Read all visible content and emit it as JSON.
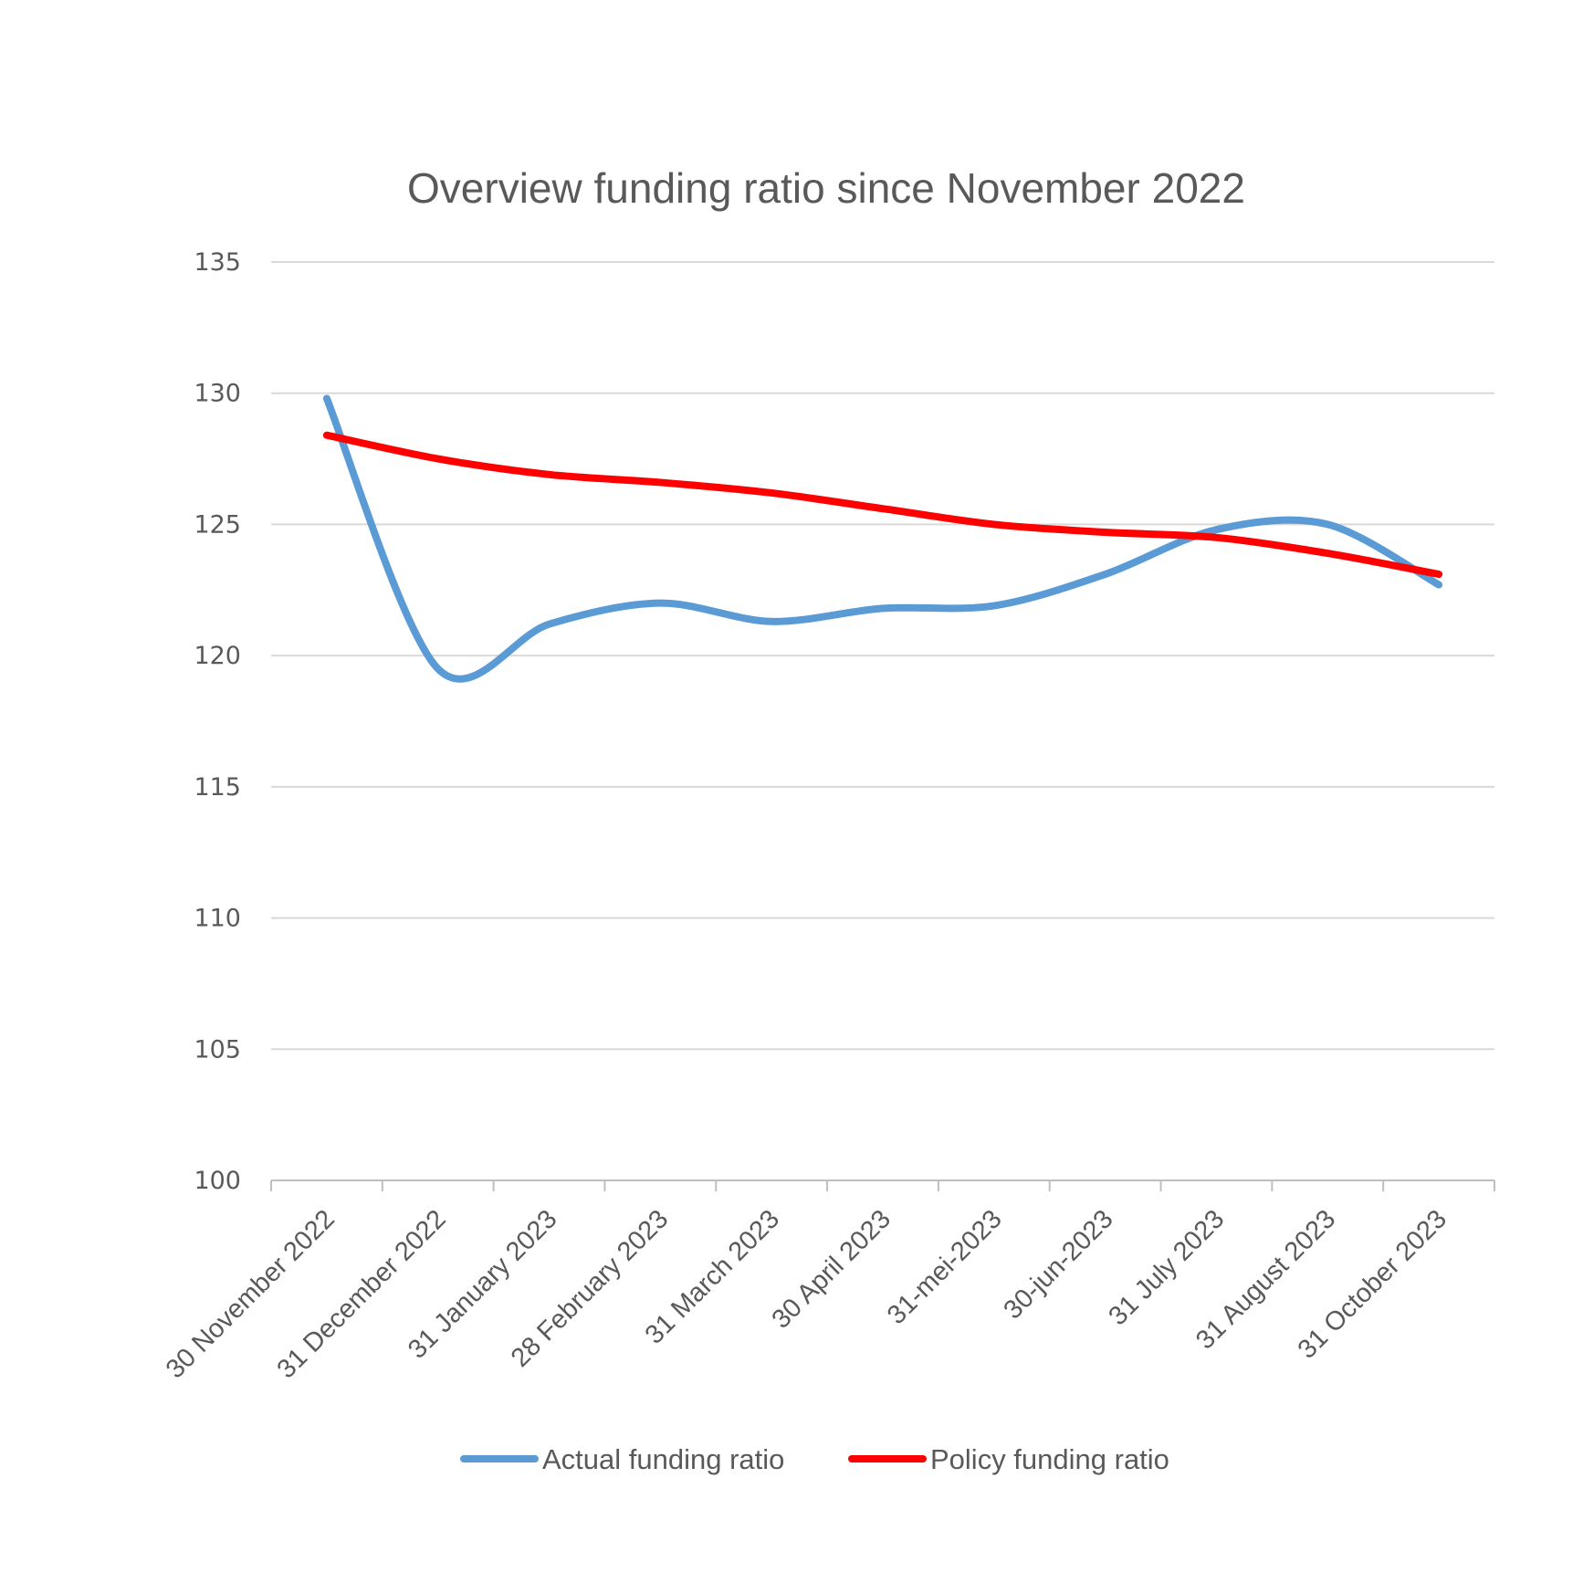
{
  "chart_data": {
    "type": "line",
    "title": "Overview funding ratio since November 2022",
    "categories": [
      "30 November 2022",
      "31 December 2022",
      "31 January 2023",
      "28 February 2023",
      "31 March 2023",
      "30 April 2023",
      "31-mei-2023",
      "30-jun-2023",
      "31 July 2023",
      "31 August 2023",
      "31 October 2023"
    ],
    "series": [
      {
        "name": "Actual funding ratio",
        "color": "#5b9bd5",
        "values": [
          129.8,
          119.5,
          121.2,
          122.0,
          121.3,
          121.8,
          121.9,
          123.1,
          124.8,
          125.0,
          122.7
        ]
      },
      {
        "name": "Policy funding ratio",
        "color": "#ff0000",
        "values": [
          128.4,
          127.5,
          126.9,
          126.6,
          126.2,
          125.6,
          125.0,
          124.7,
          124.5,
          123.9,
          123.1
        ]
      }
    ],
    "ylim": [
      100,
      135
    ],
    "yticks": [
      100,
      105,
      110,
      115,
      120,
      125,
      130,
      135
    ],
    "grid": true,
    "legend_position": "bottom",
    "xlabel": "",
    "ylabel": ""
  }
}
